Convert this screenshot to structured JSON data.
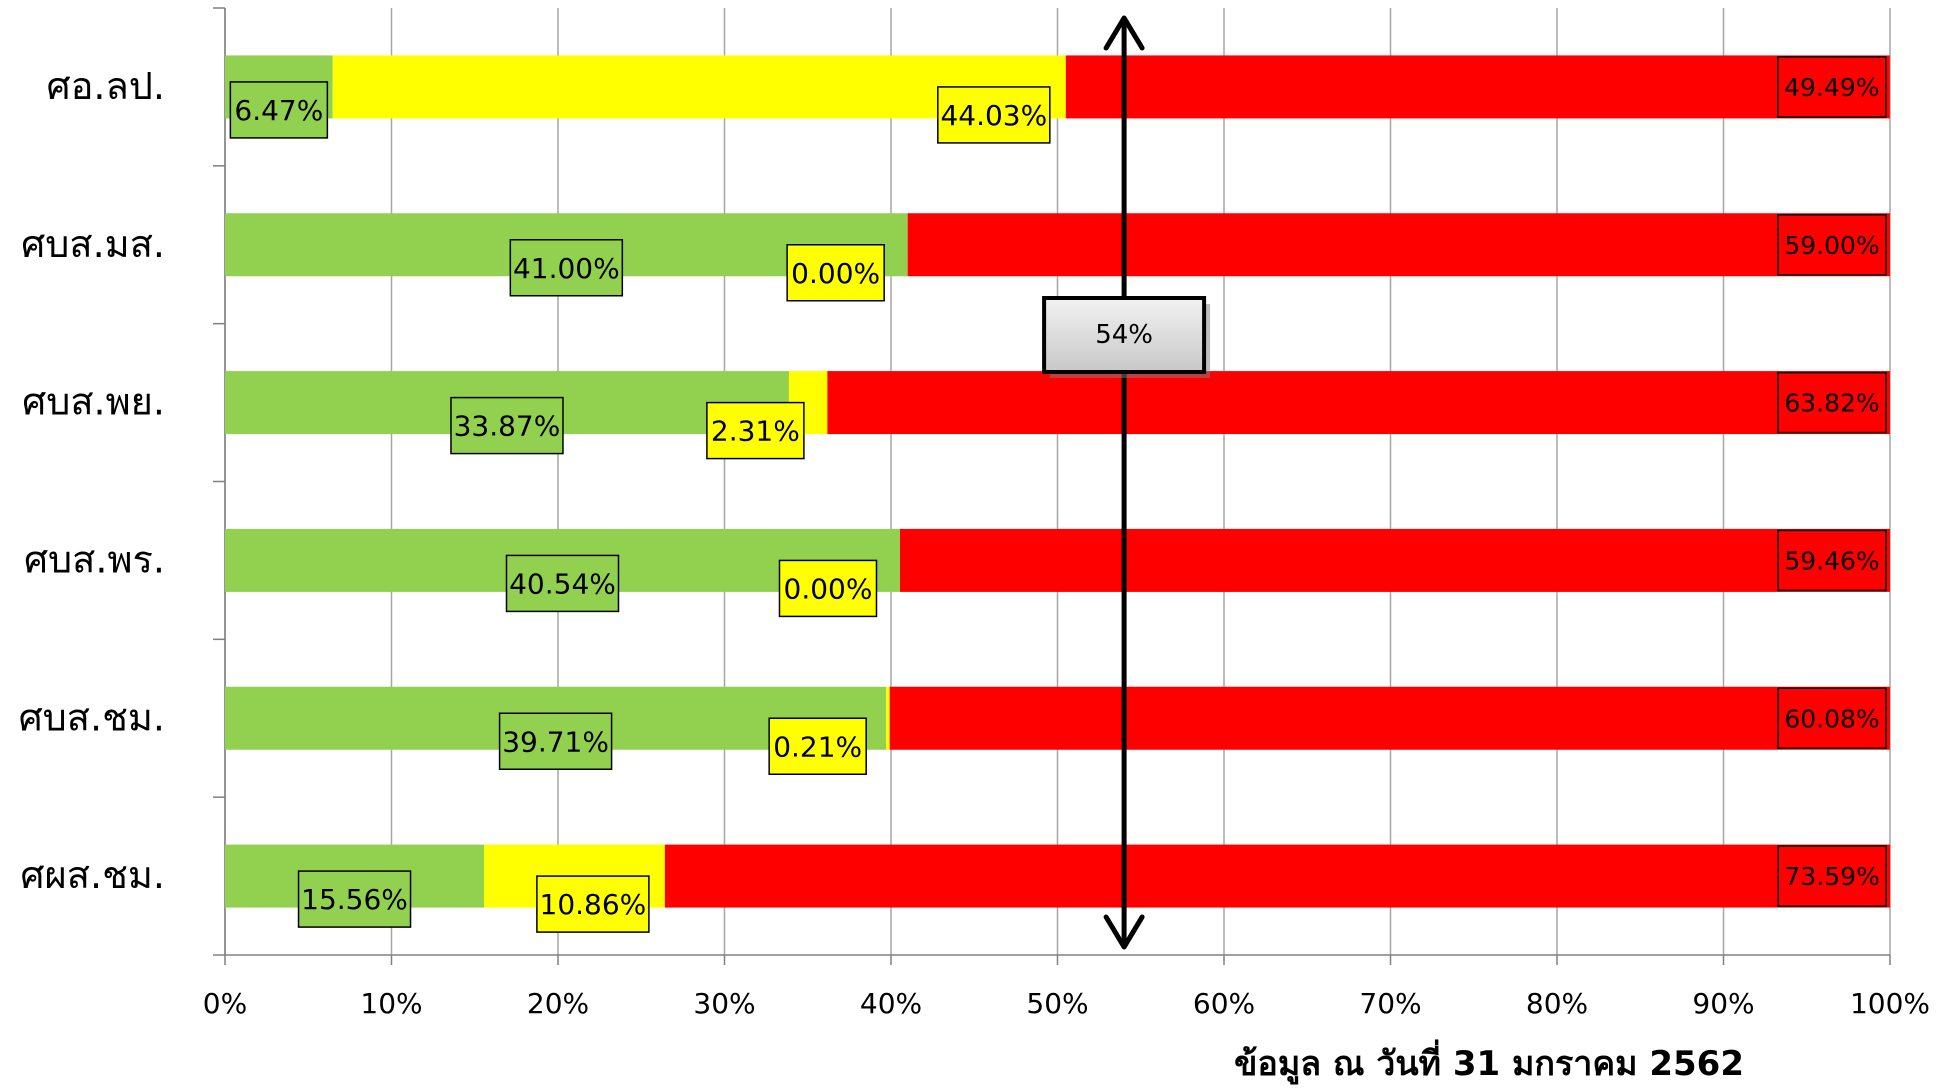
{
  "chart_data": {
    "type": "bar",
    "orientation": "horizontal",
    "stacked": "percent",
    "categories": [
      "ศอ.ลป.",
      "ศบส.มส.",
      "ศบส.พย.",
      "ศบส.พร.",
      "ศบส.ชม.",
      "ศผส.ชม."
    ],
    "series": [
      {
        "values": [
          6.47,
          41.0,
          33.87,
          40.54,
          39.71,
          15.56
        ],
        "labels": [
          "6.47%",
          "41.00%",
          "33.87%",
          "40.54%",
          "39.71%",
          "15.56%"
        ],
        "color": "#92d050"
      },
      {
        "values": [
          44.03,
          0.0,
          2.31,
          0.0,
          0.21,
          10.86
        ],
        "labels": [
          "44.03%",
          "0.00%",
          "2.31%",
          "0.00%",
          "0.21%",
          "10.86%"
        ],
        "color": "#ffff00"
      },
      {
        "values": [
          49.49,
          59.0,
          63.82,
          59.46,
          60.08,
          73.59
        ],
        "labels": [
          "49.49%",
          "59.00%",
          "63.82%",
          "59.46%",
          "60.08%",
          "73.59%"
        ],
        "color": "#ff0000"
      }
    ],
    "xlim": [
      0,
      100
    ],
    "xticks": [
      "0%",
      "10%",
      "20%",
      "30%",
      "40%",
      "50%",
      "60%",
      "70%",
      "80%",
      "90%",
      "100%"
    ],
    "grid": true,
    "reference_line": {
      "value": 54,
      "label": "54%"
    },
    "footnote": "ข้อมูล ณ วันที่ 31 มกราคม 2562"
  }
}
